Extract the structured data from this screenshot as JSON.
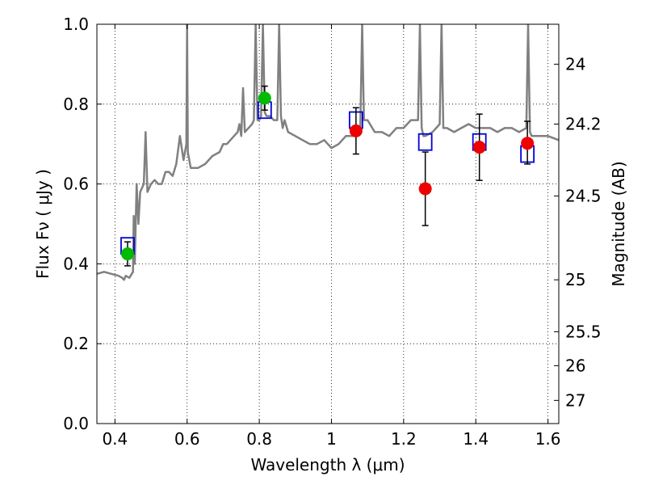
{
  "chart_data": {
    "type": "scatter",
    "xlabel": "Wavelength  λ (μm)",
    "ylabel": "Flux  Fν  ( μJy )",
    "ylabel_right": "Magnitude (AB)",
    "xlim": [
      0.35,
      1.63
    ],
    "ylim": [
      0.0,
      1.0
    ],
    "x_ticks": [
      0.4,
      0.6,
      0.8,
      1.0,
      1.2,
      1.4,
      1.6
    ],
    "x_tick_labels": [
      "0.4",
      "0.6",
      "0.8",
      "1",
      "1.2",
      "1.4",
      "1.6"
    ],
    "y_ticks": [
      0.0,
      0.2,
      0.4,
      0.6,
      0.8,
      1.0
    ],
    "y_tick_labels": [
      "0.0",
      "0.2",
      "0.4",
      "0.6",
      "0.8",
      "1.0"
    ],
    "right_ticks": [
      {
        "label": "24",
        "flux": 0.9
      },
      {
        "label": "24.2",
        "flux": 0.75
      },
      {
        "label": "24.5",
        "flux": 0.57
      },
      {
        "label": "25",
        "flux": 0.36
      },
      {
        "label": "25.5",
        "flux": 0.23
      },
      {
        "label": "26",
        "flux": 0.145
      },
      {
        "label": "27",
        "flux": 0.058
      }
    ],
    "grid": true,
    "series": [
      {
        "style": "line",
        "color": "#808080",
        "x": [
          0.35,
          0.37,
          0.39,
          0.41,
          0.42,
          0.425,
          0.43,
          0.44,
          0.45,
          0.452,
          0.455,
          0.46,
          0.465,
          0.47,
          0.48,
          0.485,
          0.49,
          0.5,
          0.51,
          0.52,
          0.53,
          0.54,
          0.55,
          0.56,
          0.57,
          0.58,
          0.59,
          0.598,
          0.6,
          0.602,
          0.61,
          0.63,
          0.65,
          0.67,
          0.69,
          0.7,
          0.71,
          0.72,
          0.73,
          0.74,
          0.745,
          0.75,
          0.755,
          0.76,
          0.77,
          0.78,
          0.785,
          0.79,
          0.795,
          0.8,
          0.805,
          0.81,
          0.815,
          0.82,
          0.83,
          0.84,
          0.85,
          0.855,
          0.86,
          0.865,
          0.87,
          0.88,
          0.9,
          0.92,
          0.94,
          0.96,
          0.98,
          1.0,
          1.02,
          1.04,
          1.06,
          1.07,
          1.08,
          1.085,
          1.09,
          1.1,
          1.12,
          1.14,
          1.16,
          1.18,
          1.2,
          1.22,
          1.24,
          1.245,
          1.25,
          1.255,
          1.26,
          1.28,
          1.3,
          1.305,
          1.31,
          1.32,
          1.34,
          1.36,
          1.38,
          1.4,
          1.42,
          1.44,
          1.46,
          1.48,
          1.5,
          1.52,
          1.54,
          1.545,
          1.55,
          1.555,
          1.56,
          1.58,
          1.6,
          1.63
        ],
        "y": [
          0.375,
          0.38,
          0.375,
          0.37,
          0.365,
          0.36,
          0.37,
          0.365,
          0.38,
          0.52,
          0.4,
          0.6,
          0.5,
          0.58,
          0.6,
          0.73,
          0.58,
          0.6,
          0.61,
          0.6,
          0.6,
          0.63,
          0.63,
          0.62,
          0.65,
          0.72,
          0.66,
          0.7,
          1.0,
          0.68,
          0.64,
          0.64,
          0.65,
          0.67,
          0.68,
          0.7,
          0.7,
          0.71,
          0.72,
          0.73,
          0.75,
          0.72,
          0.84,
          0.73,
          0.74,
          0.75,
          0.76,
          1.0,
          0.76,
          0.76,
          0.77,
          1.0,
          0.78,
          0.77,
          0.77,
          0.76,
          0.76,
          1.0,
          0.77,
          0.74,
          0.76,
          0.73,
          0.72,
          0.71,
          0.7,
          0.7,
          0.71,
          0.69,
          0.7,
          0.72,
          0.72,
          0.73,
          0.74,
          1.0,
          0.76,
          0.76,
          0.73,
          0.73,
          0.72,
          0.74,
          0.74,
          0.76,
          0.76,
          1.0,
          0.74,
          0.72,
          0.72,
          0.73,
          0.75,
          1.0,
          0.74,
          0.74,
          0.73,
          0.74,
          0.75,
          0.74,
          0.74,
          0.74,
          0.73,
          0.74,
          0.74,
          0.73,
          0.74,
          1.0,
          0.73,
          0.72,
          0.72,
          0.72,
          0.72,
          0.71
        ]
      },
      {
        "style": "open-square",
        "color": "#0000dd",
        "x": [
          0.435,
          0.815,
          1.068,
          1.26,
          1.41,
          1.543
        ],
        "y": [
          0.445,
          0.785,
          0.76,
          0.705,
          0.705,
          0.675
        ]
      },
      {
        "style": "filled-circle",
        "color": "#00bb00",
        "x": [
          0.435,
          0.815
        ],
        "y": [
          0.425,
          0.815
        ],
        "yerr": [
          0.03,
          0.03
        ]
      },
      {
        "style": "filled-circle",
        "color": "#ee0000",
        "x": [
          1.068,
          1.26,
          1.41,
          1.543
        ],
        "y": [
          0.733,
          0.588,
          0.692,
          0.702
        ],
        "yerr_low": [
          0.058,
          0.092,
          0.083,
          0.052
        ],
        "yerr_high": [
          0.058,
          0.092,
          0.083,
          0.055
        ]
      }
    ]
  }
}
